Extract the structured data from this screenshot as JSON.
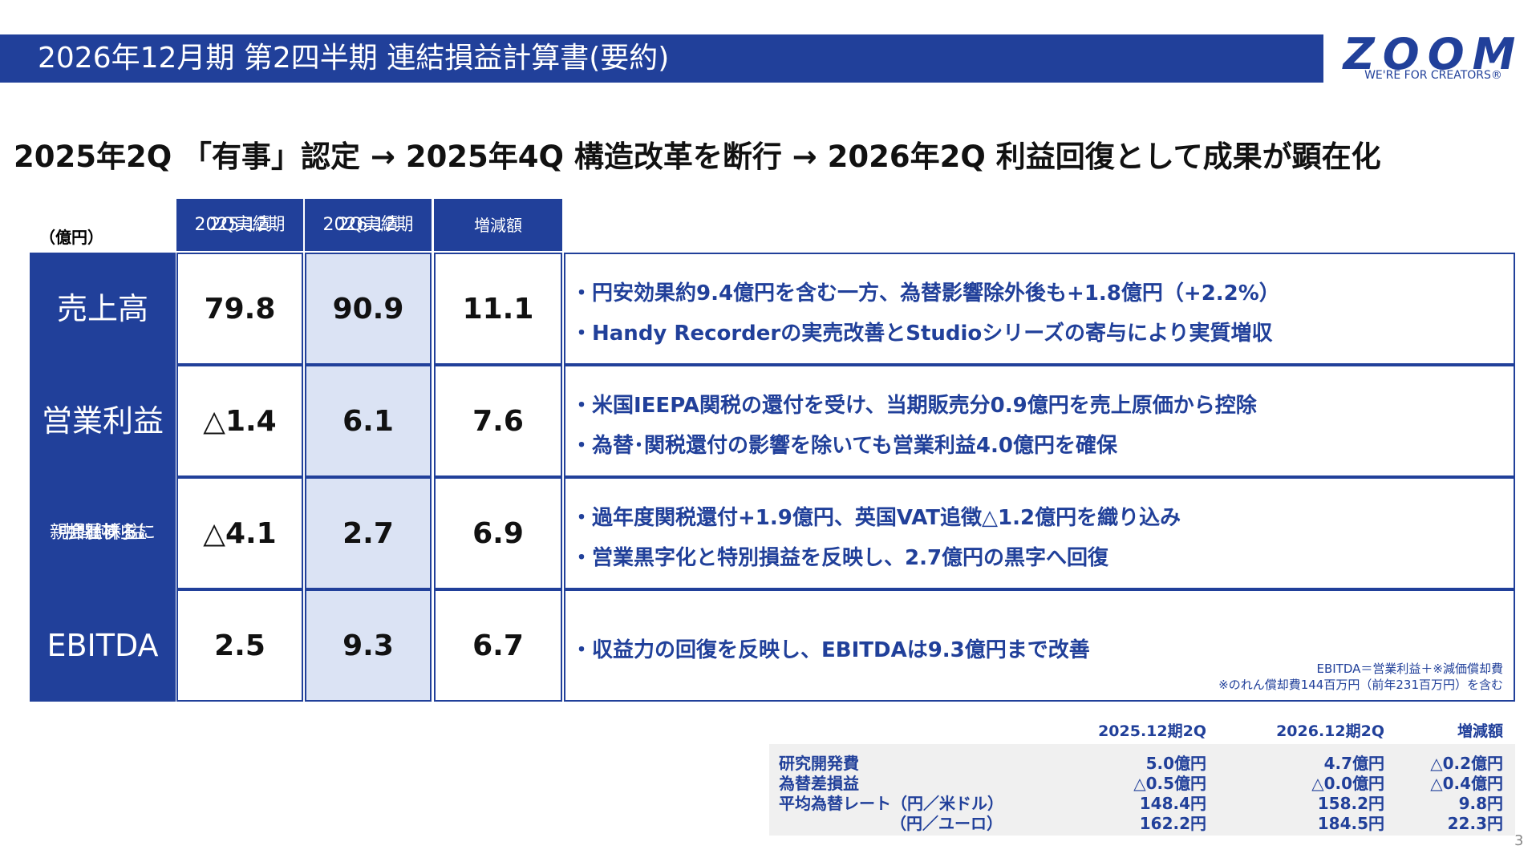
{
  "header": {
    "title": "2026年12月期 第2四半期 連結損益計算書(要約)",
    "logo": "ZOOM",
    "tagline": "WE'RE FOR CREATORS®"
  },
  "headline": "2025年2Q 「有事」認定 → 2025年4Q  構造改革を断行 → 2026年2Q  利益回復として成果が顕在化",
  "table": {
    "unit": "（億円）",
    "columns": [
      [
        "2025.12期",
        "2Q実績"
      ],
      [
        "2026.12期",
        "2Q実績"
      ],
      [
        "増減額"
      ]
    ],
    "rows": [
      {
        "label": [
          "売上高"
        ],
        "values": [
          "79.8",
          "90.9",
          "11.1"
        ],
        "notes": [
          "・円安効果約9.4億円を含む一方、為替影響除外後も+1.8億円（+2.2%）",
          "・Handy Recorderの実売改善とStudioシリーズの寄与により実質増収"
        ]
      },
      {
        "label": [
          "営業利益"
        ],
        "values": [
          "△1.4",
          "6.1",
          "7.6"
        ],
        "notes": [
          "・米国IEEPA関税の還付を受け、当期販売分0.9億円を売上原価から控除",
          "・為替･関税還付の影響を除いても営業利益4.0億円を確保"
        ]
      },
      {
        "label": [
          "親会社株主に",
          "帰属する",
          "中間純利益"
        ],
        "values": [
          "△4.1",
          "2.7",
          "6.9"
        ],
        "notes": [
          "・過年度関税還付+1.9億円、英国VAT追徴△1.2億円を織り込み",
          "・営業黒字化と特別損益を反映し、2.7億円の黒字へ回復"
        ]
      },
      {
        "label": [
          "EBITDA"
        ],
        "values": [
          "2.5",
          "9.3",
          "6.7"
        ],
        "notes": [
          "・収益力の回復を反映し、EBITDAは9.3億円まで改善"
        ]
      }
    ],
    "footnote": [
      "EBITDA＝営業利益＋※減価償却費",
      "※のれん償却費144百万円（前年231百万円）を含む"
    ]
  },
  "sub_table": {
    "columns": [
      "2025.12期2Q",
      "2026.12期2Q",
      "増減額"
    ],
    "rows": [
      {
        "label": "研究開発費",
        "values": [
          "5.0億円",
          "4.7億円",
          "△0.2億円"
        ]
      },
      {
        "label": "為替差損益",
        "values": [
          "△0.5億円",
          "△0.0億円",
          "△0.4億円"
        ]
      },
      {
        "label": "平均為替レート（円／米ドル）",
        "values": [
          "148.4円",
          "158.2円",
          "9.8円"
        ]
      },
      {
        "label": "（円／ユーロ）",
        "values": [
          "162.2円",
          "184.5円",
          "22.3円"
        ]
      }
    ]
  },
  "page_number": "3"
}
